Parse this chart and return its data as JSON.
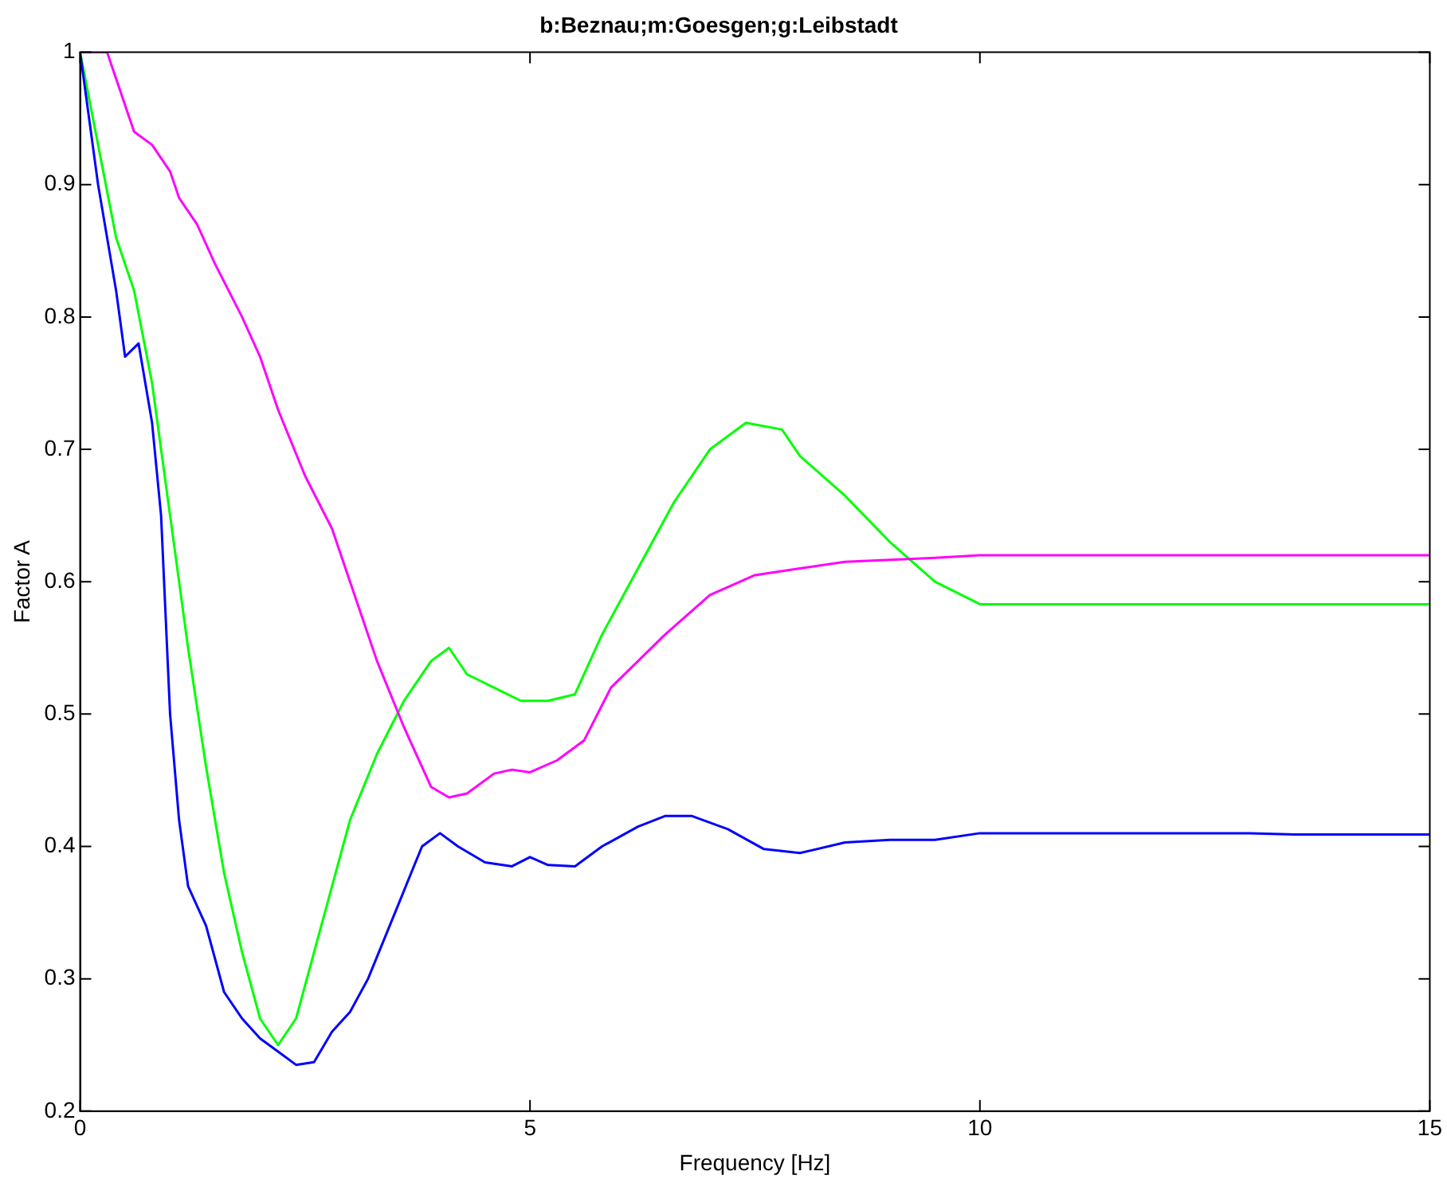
{
  "chart_data": {
    "type": "line",
    "title": "b:Beznau;m:Goesgen;g:Leibstadt",
    "xlabel": "Frequency [Hz]",
    "ylabel": "Factor A",
    "xlim": [
      0,
      15
    ],
    "xticks": [
      0,
      5,
      10,
      15
    ],
    "ylim": [
      0.2,
      1
    ],
    "yticks": [
      0.2,
      0.3,
      0.4,
      0.5,
      0.6,
      0.7,
      0.8,
      0.9,
      1
    ],
    "grid": false,
    "legend": false,
    "marker": "none",
    "line_style": "solid",
    "series": [
      {
        "color": "#0000ff",
        "x": [
          0,
          0.2,
          0.4,
          0.5,
          0.65,
          0.8,
          0.9,
          1.0,
          1.1,
          1.2,
          1.4,
          1.6,
          1.8,
          2.0,
          2.2,
          2.4,
          2.6,
          2.8,
          3.0,
          3.2,
          3.5,
          3.8,
          4.0,
          4.2,
          4.5,
          4.8,
          5.0,
          5.2,
          5.5,
          5.8,
          6.2,
          6.5,
          6.8,
          7.2,
          7.6,
          8.0,
          8.5,
          9.0,
          9.5,
          10,
          13,
          13.5,
          15
        ],
        "values": [
          1.0,
          0.9,
          0.82,
          0.77,
          0.78,
          0.72,
          0.65,
          0.5,
          0.42,
          0.37,
          0.34,
          0.29,
          0.27,
          0.255,
          0.245,
          0.235,
          0.237,
          0.26,
          0.275,
          0.3,
          0.35,
          0.4,
          0.41,
          0.4,
          0.388,
          0.385,
          0.392,
          0.386,
          0.385,
          0.4,
          0.415,
          0.423,
          0.423,
          0.413,
          0.398,
          0.395,
          0.403,
          0.405,
          0.405,
          0.41,
          0.41,
          0.409,
          0.409
        ]
      },
      {
        "color": "#ff00ff",
        "x": [
          0,
          0.3,
          0.5,
          0.6,
          0.8,
          1.0,
          1.1,
          1.3,
          1.5,
          1.8,
          2.0,
          2.2,
          2.5,
          2.8,
          3.0,
          3.3,
          3.6,
          3.9,
          4.1,
          4.3,
          4.6,
          4.8,
          5.0,
          5.3,
          5.6,
          5.9,
          6.5,
          7.0,
          7.5,
          8.0,
          8.5,
          9.5,
          10,
          15
        ],
        "values": [
          1.0,
          1.0,
          0.96,
          0.94,
          0.93,
          0.91,
          0.89,
          0.87,
          0.84,
          0.8,
          0.77,
          0.73,
          0.68,
          0.64,
          0.6,
          0.54,
          0.49,
          0.445,
          0.437,
          0.44,
          0.455,
          0.458,
          0.456,
          0.465,
          0.48,
          0.52,
          0.56,
          0.59,
          0.605,
          0.61,
          0.615,
          0.618,
          0.62,
          0.62
        ]
      },
      {
        "color": "#00ff00",
        "x": [
          0,
          0.2,
          0.4,
          0.6,
          0.8,
          1.0,
          1.2,
          1.4,
          1.6,
          1.8,
          2.0,
          2.2,
          2.4,
          2.6,
          2.8,
          3.0,
          3.3,
          3.6,
          3.9,
          4.1,
          4.3,
          4.6,
          4.9,
          5.2,
          5.5,
          5.8,
          6.2,
          6.6,
          7.0,
          7.4,
          7.8,
          8.0,
          8.5,
          9.0,
          9.5,
          10,
          15
        ],
        "values": [
          1.0,
          0.93,
          0.86,
          0.82,
          0.75,
          0.65,
          0.55,
          0.46,
          0.38,
          0.32,
          0.27,
          0.25,
          0.27,
          0.32,
          0.37,
          0.42,
          0.47,
          0.51,
          0.54,
          0.55,
          0.53,
          0.52,
          0.51,
          0.51,
          0.515,
          0.56,
          0.61,
          0.66,
          0.7,
          0.72,
          0.715,
          0.695,
          0.665,
          0.63,
          0.6,
          0.583,
          0.583
        ]
      }
    ]
  }
}
